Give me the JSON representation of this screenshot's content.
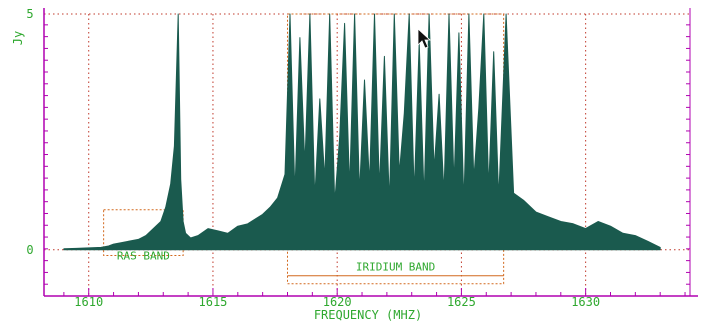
{
  "chart_data": {
    "type": "line",
    "title": "",
    "xlabel": "FREQUENCY (MHZ)",
    "ylabel": "Jy",
    "xlim": [
      1608.2,
      1634.2
    ],
    "ylim": [
      -0.98,
      5.0
    ],
    "x_ticks": [
      1610,
      1615,
      1620,
      1625,
      1630
    ],
    "x_tick_labels": [
      "1610",
      "1615",
      "1620",
      "1625",
      "1630"
    ],
    "y_tick_labels": [
      {
        "value": 5,
        "label": "5"
      },
      {
        "value": 0,
        "label": "0"
      }
    ],
    "grid": true,
    "colors": {
      "series": "#1a5a4e",
      "grid": "#c0392b",
      "axis": "#b000b0",
      "text": "#2fa82f",
      "band": "#d2691e",
      "background": "#ffffff"
    },
    "series": [
      {
        "x": [
          1609.0,
          1609.5,
          1610.0,
          1610.5,
          1610.8,
          1611.0,
          1611.3,
          1611.6,
          1612.0,
          1612.3,
          1612.6,
          1612.9,
          1613.1,
          1613.3,
          1613.45,
          1613.6,
          1613.7,
          1613.8,
          1613.9,
          1614.1,
          1614.4,
          1614.8,
          1615.2,
          1615.6,
          1616.0,
          1616.4,
          1616.7,
          1617.0,
          1617.3,
          1617.6,
          1617.9,
          1618.1,
          1618.3,
          1618.5,
          1618.7,
          1618.9,
          1619.1,
          1619.3,
          1619.5,
          1619.7,
          1619.9,
          1620.1,
          1620.3,
          1620.5,
          1620.7,
          1620.9,
          1621.1,
          1621.3,
          1621.5,
          1621.7,
          1621.9,
          1622.1,
          1622.3,
          1622.5,
          1622.7,
          1622.9,
          1623.1,
          1623.3,
          1623.5,
          1623.7,
          1623.9,
          1624.1,
          1624.3,
          1624.5,
          1624.7,
          1624.9,
          1625.1,
          1625.3,
          1625.5,
          1625.7,
          1625.9,
          1626.1,
          1626.3,
          1626.5,
          1626.8,
          1627.1,
          1627.5,
          1628.0,
          1628.5,
          1629.0,
          1629.5,
          1630.0,
          1630.5,
          1631.0,
          1631.5,
          1632.0,
          1632.5,
          1633.0
        ],
        "y": [
          0.02,
          0.03,
          0.04,
          0.05,
          0.08,
          0.12,
          0.15,
          0.18,
          0.22,
          0.3,
          0.45,
          0.6,
          0.9,
          1.4,
          2.2,
          5.0,
          1.5,
          0.6,
          0.35,
          0.25,
          0.3,
          0.45,
          0.4,
          0.35,
          0.5,
          0.55,
          0.65,
          0.75,
          0.9,
          1.1,
          1.6,
          5.0,
          1.2,
          4.5,
          1.8,
          5.0,
          1.1,
          3.2,
          1.5,
          5.0,
          1.0,
          2.4,
          4.8,
          1.3,
          5.0,
          1.2,
          3.6,
          1.4,
          5.0,
          1.3,
          4.1,
          1.0,
          5.0,
          1.6,
          2.9,
          5.0,
          1.2,
          4.4,
          1.1,
          5.0,
          1.7,
          3.3,
          1.2,
          5.0,
          1.4,
          4.6,
          1.0,
          5.0,
          1.5,
          3.0,
          5.0,
          1.3,
          4.2,
          1.1,
          5.0,
          1.2,
          1.05,
          0.8,
          0.7,
          0.6,
          0.55,
          0.45,
          0.6,
          0.5,
          0.35,
          0.3,
          0.18,
          0.05
        ]
      }
    ],
    "annotations": [
      {
        "label": "RAS BAND",
        "x0": 1610.6,
        "x1": 1613.8,
        "y_top": 0.85
      },
      {
        "label": "IRIDIUM BAND",
        "x0": 1618.0,
        "x1": 1626.7,
        "y_top": 5.0
      }
    ]
  }
}
